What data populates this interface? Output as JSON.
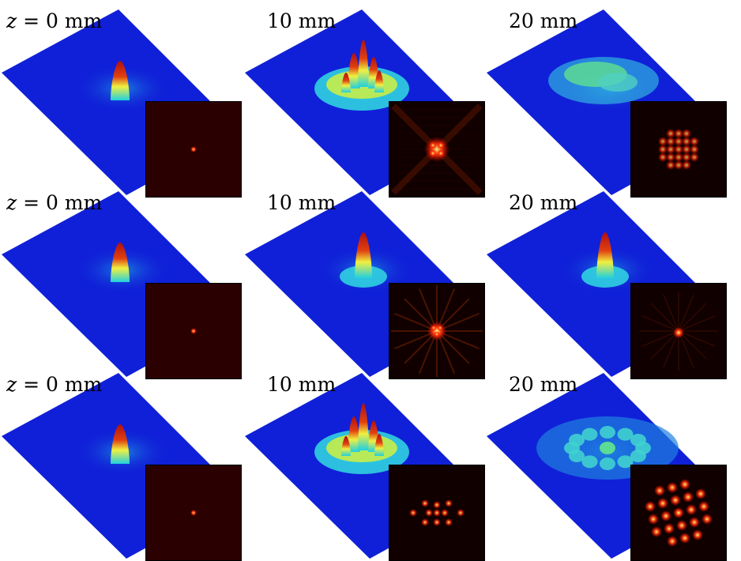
{
  "figure": {
    "rows": [
      {
        "panels": [
          {
            "z_label": "0 mm",
            "z_prefix": "z = ",
            "peak": "single",
            "inset": "single-spot"
          },
          {
            "z_label": "10 mm",
            "z_prefix": "",
            "peak": "multi-breakup",
            "inset": "cross-pattern"
          },
          {
            "z_label": "20 mm",
            "z_prefix": "",
            "peak": "diffuse",
            "inset": "lattice-pattern"
          }
        ]
      },
      {
        "panels": [
          {
            "z_label": "0 mm",
            "z_prefix": "z = ",
            "peak": "single",
            "inset": "single-spot"
          },
          {
            "z_label": "10 mm",
            "z_prefix": "",
            "peak": "single-broadened",
            "inset": "ring-pattern"
          },
          {
            "z_label": "20 mm",
            "z_prefix": "",
            "peak": "single-broadened",
            "inset": "faint-ring"
          }
        ]
      },
      {
        "panels": [
          {
            "z_label": "0 mm",
            "z_prefix": "z = ",
            "peak": "single",
            "inset": "single-spot"
          },
          {
            "z_label": "10 mm",
            "z_prefix": "",
            "peak": "multi-breakup",
            "inset": "spot-array"
          },
          {
            "z_label": "20 mm",
            "z_prefix": "",
            "peak": "filament-array",
            "inset": "spot-lattice"
          }
        ]
      }
    ],
    "colors": {
      "surface_base": "#1020d8",
      "surface_mid": "#20c0e0",
      "peak_high": "#b01010",
      "inset_bg": "#2a0000",
      "inset_spot": "#ffff80"
    }
  }
}
